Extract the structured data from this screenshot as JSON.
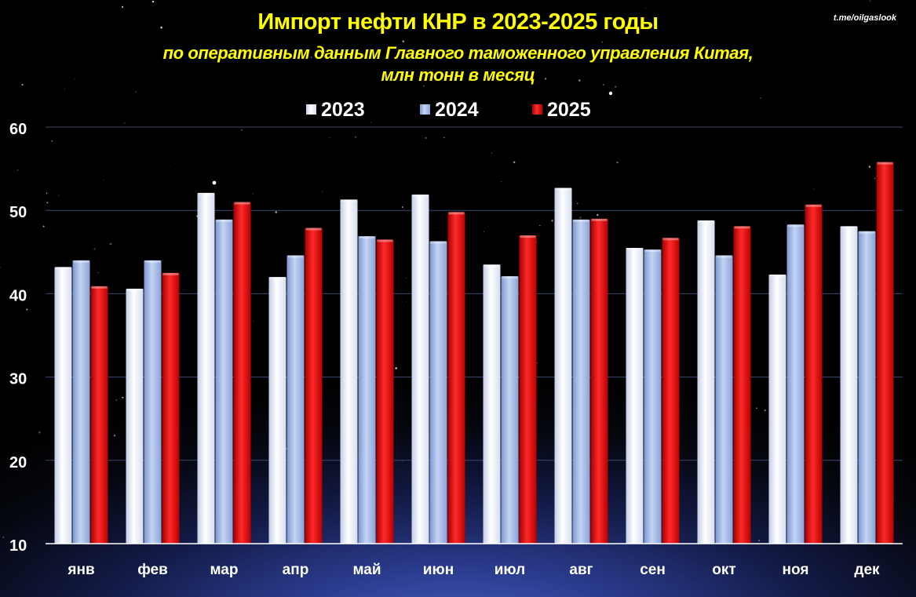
{
  "source_credit": "t.me/oilgaslook",
  "chart_data": {
    "type": "bar",
    "title": "Импорт нефти КНР в 2023-2025 годы",
    "subtitle_line1": "по оперативным данным Главного таможенного управления Китая,",
    "subtitle_line2": "млн тонн в месяц",
    "categories": [
      "янв",
      "фев",
      "мар",
      "апр",
      "май",
      "июн",
      "июл",
      "авг",
      "сен",
      "окт",
      "ноя",
      "дек"
    ],
    "series": [
      {
        "name": "2023",
        "color": "#e4eaf8",
        "values": [
          43.2,
          40.6,
          52.1,
          42.0,
          51.3,
          51.9,
          43.5,
          52.7,
          45.5,
          48.8,
          42.3,
          48.1
        ]
      },
      {
        "name": "2024",
        "color": "#98b1e3",
        "values": [
          44.0,
          44.0,
          48.9,
          44.6,
          46.9,
          46.3,
          42.1,
          48.9,
          45.3,
          44.6,
          48.3,
          47.5
        ]
      },
      {
        "name": "2025",
        "color": "#d00000",
        "values": [
          40.9,
          42.5,
          51.0,
          47.9,
          46.5,
          49.8,
          47.0,
          49.0,
          46.7,
          48.1,
          50.7,
          55.8
        ]
      }
    ],
    "y_ticks": [
      10,
      20,
      30,
      40,
      50,
      60
    ],
    "ylim": [
      10,
      60
    ],
    "xlabel": "",
    "ylabel": "",
    "grid": true,
    "legend_position": "top-center"
  }
}
